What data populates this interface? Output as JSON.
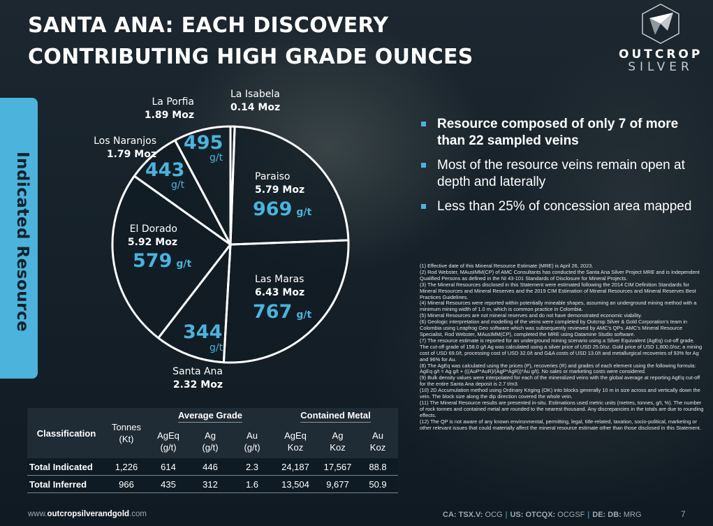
{
  "title": {
    "line1": "SANTA ANA: EACH DISCOVERY",
    "line2": "CONTRIBUTING HIGH GRADE OUNCES"
  },
  "logo": {
    "line1": "OUTCROP",
    "line2": "SILVER"
  },
  "side_label": "Indicated Resource",
  "chart_data": {
    "type": "pie",
    "unit_label": "g/t",
    "slices": [
      {
        "label": "La Isabela",
        "ounces": "0.14 Moz",
        "value": 0.14,
        "grade": ""
      },
      {
        "label": "Paraiso",
        "ounces": "5.79 Moz",
        "value": 5.79,
        "grade": "969"
      },
      {
        "label": "Las Maras",
        "ounces": "6.43 Moz",
        "value": 6.43,
        "grade": "767"
      },
      {
        "label": "Santa Ana",
        "ounces": "2.32 Moz",
        "value": 2.32,
        "grade": "344"
      },
      {
        "label": "El Dorado",
        "ounces": "5.92 Moz",
        "value": 5.92,
        "grade": "579"
      },
      {
        "label": "Los Naranjos",
        "ounces": "1.79 Moz",
        "value": 1.79,
        "grade": "443"
      },
      {
        "label": "La Porfia",
        "ounces": "1.89 Moz",
        "value": 1.89,
        "grade": "495"
      }
    ],
    "colors": {
      "slice_fill": "#0f1b24",
      "edge": "#ffffff",
      "grade_color": "#4bb3dc"
    }
  },
  "bullets": [
    "Resource composed of only 7 of more than 22 sampled veins",
    "Most of the resource veins remain open at depth and laterally",
    "Less than 25%  of concession area mapped"
  ],
  "notes": [
    "(1) Effective date of this Mineral Resource Estimate (MRE) is April 26, 2023.",
    "(2) Rod Webster, MAusIMM(CP) of AMC Consultants has conducted the Santa Ana Silver Project MRE and is independent Qualified Persons as defined in the NI 43-101 Standards of Disclosure for Mineral Projects.",
    "(3) The Mineral Resources disclosed in this Statement were estimated following the 2014 CIM Definition Standards for Mineral Resources and Mineral Reserves and the 2019 CIM Estimation of Mineral Resources and Mineral Reserves Best Practices Guidelines.",
    "(4) Mineral Resources were reported within potentially mineable shapes, assuming an underground mining method with a minimum mining width of 1.0 m, which is common practice in Colombia.",
    "(5) Mineral Resources are not mineral reserves and do not have demonstrated economic viability.",
    "(6) Geologic interpretation and modelling of the veins were completed by Outcrop Silver & Gold Corporation's team in Colombia using Leapfrog Geo software which was subsequently reviewed by AMC's QPs. AMC's Mineral Resource Specialist, Rod Webster, MAusIMM(CP), completed the MRE using Datamine Studio software.",
    "(7) The resource estimate is reported for an underground mining scenario using a Silver Equivalent (AgEq) cut-off grade. The cut-off grade of 158.0 g/t Ag was calculated using a silver price of USD 25.0/oz. Gold price of USD 1,800.0/oz; a mining cost of USD 69.0/t, processing cost of USD 32.0/t and G&A costs of USD 13.0/t and metallurgical recoveries of 93% for Ag and 96% for Au.",
    "(8) The AgEq was calculated using the prices (P), recoveries (R) and grades of each element using the following formula: AgEq g/t = Ag g/t + (((AuP*AuR)/(AgP*AgR))*Au g/t). No sales or marketing costs were considered.",
    "(9) Bulk density values were interpolated for each of the mineralized veins with the global average at reporting AgEq cut-off for the entire Santa Ana deposit is 2.7 t/m3.",
    "(10) 2D Accumulation method using Ordinary Kriging (OK) into blocks generally 10 m in size across and vertically down the vein. The block size along the dip direction covered the whole vein.",
    "(11) The Mineral Resource results are presented in-situ. Estimations used metric units (metres, tonnes, g/t, %). The number of rock tonnes and contained metal are rounded to the nearest thousand. Any discrepancies in the totals are due to rounding effects.",
    "(12) The QP is not aware of any known environmental, permitting, legal, title-related, taxation, socio-political, marketing or other relevant issues that could materially affect the mineral resource estimate other than those disclosed in this Statement."
  ],
  "table": {
    "classification": "Classification",
    "tonnes_line1": "Tonnes",
    "tonnes_line2": "(Kt)",
    "group_avg": "Average Grade",
    "group_metal": "Contained Metal",
    "columns": [
      {
        "l1": "AgEq",
        "l2": "(g/t)"
      },
      {
        "l1": "Ag",
        "l2": "(g/t)"
      },
      {
        "l1": "Au",
        "l2": "(g/t)"
      },
      {
        "l1": "AgEq",
        "l2": "Koz"
      },
      {
        "l1": "Ag",
        "l2": "Koz"
      },
      {
        "l1": "Au",
        "l2": "Koz"
      }
    ],
    "rows": [
      {
        "label": "Total Indicated",
        "values": [
          "1,226",
          "614",
          "446",
          "2.3",
          "24,187",
          "17,567",
          "88.8"
        ]
      },
      {
        "label": "Total Inferred",
        "values": [
          "966",
          "435",
          "312",
          "1.6",
          "13,504",
          "9,677",
          "50.9"
        ]
      }
    ]
  },
  "footer": {
    "url_prefix": "www.",
    "url_bold": "outcropsilverandgold",
    "url_suffix": ".com",
    "t1_label": "CA: TSX.V:",
    "t1_value": "OCG",
    "t2_label": "US: OTCQX:",
    "t2_value": "OCGSF",
    "t3_label": "DE: DB:",
    "t3_value": "MRG",
    "separator": "|",
    "page": "7"
  }
}
